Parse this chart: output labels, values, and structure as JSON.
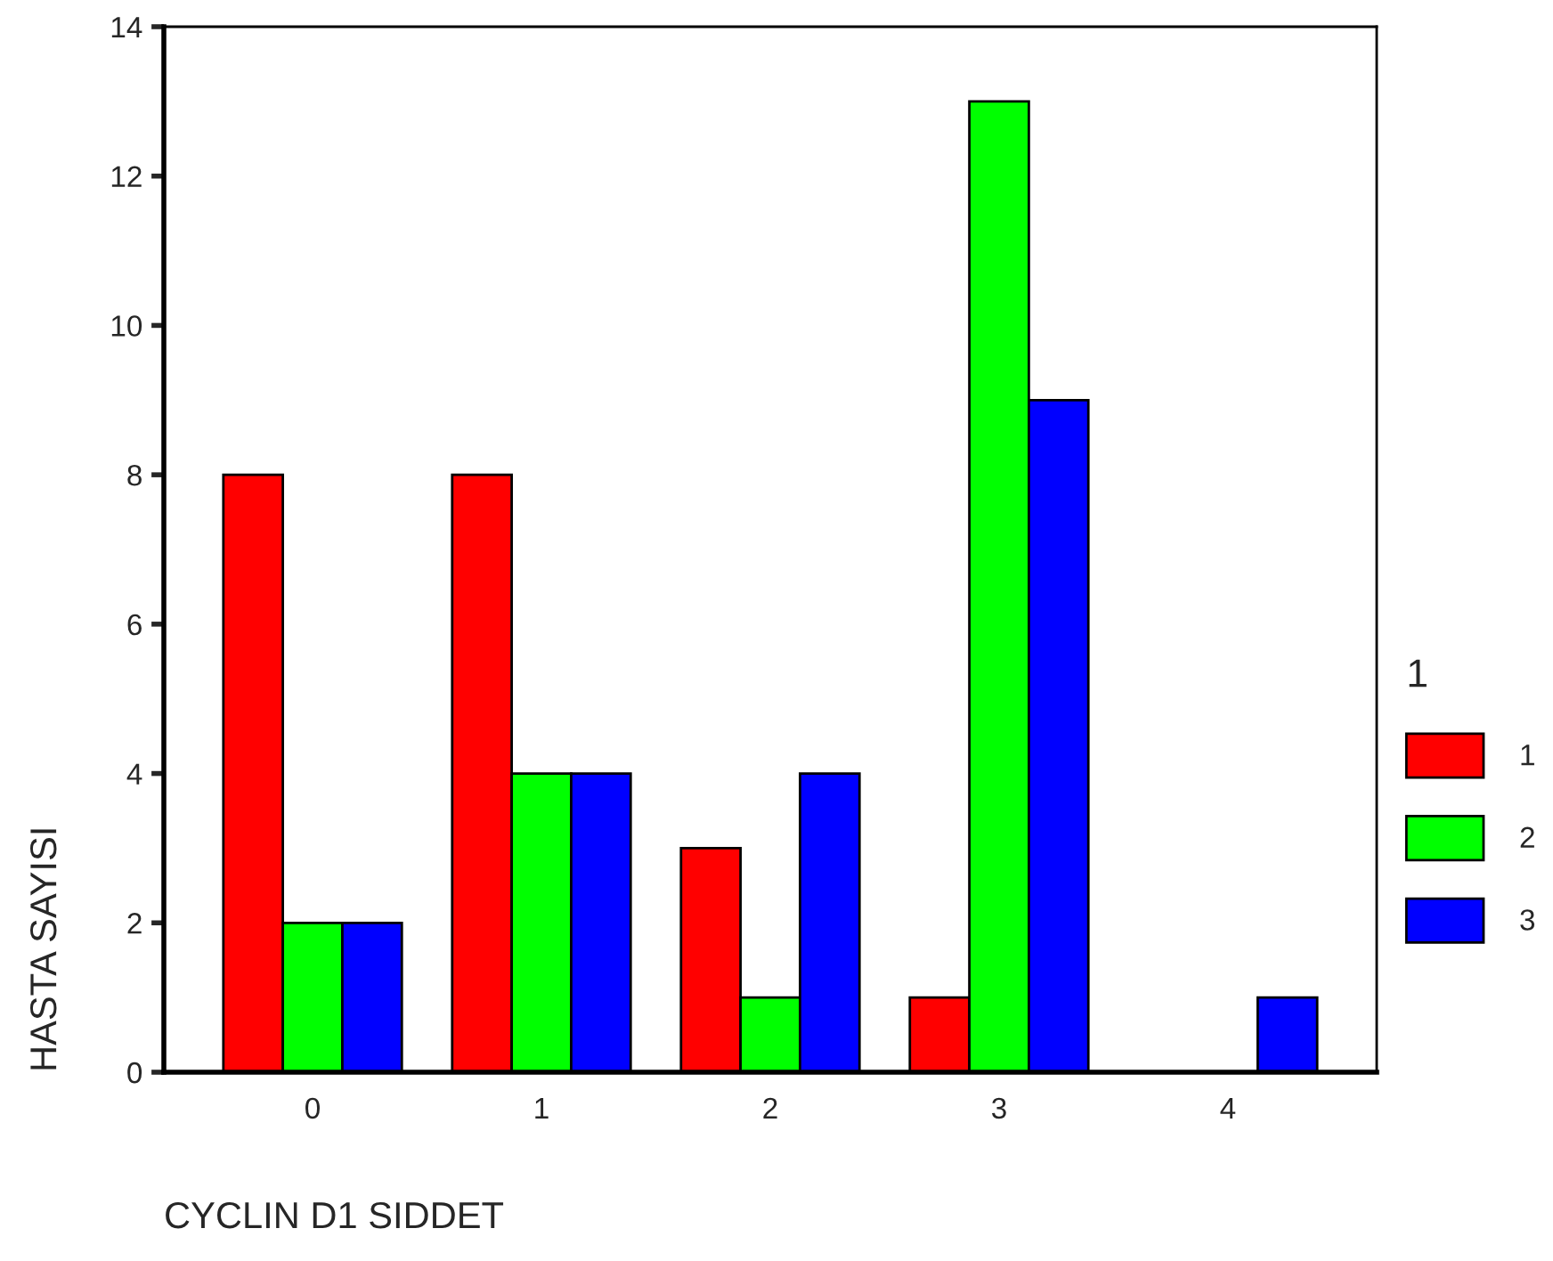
{
  "chart_data": {
    "type": "bar",
    "xlabel": "CYCLIN D1 SIDDET",
    "ylabel": "HASTA SAYISI",
    "legend_title": "1",
    "categories": [
      "0",
      "1",
      "2",
      "3",
      "4"
    ],
    "series": [
      {
        "name": "1",
        "color": "#ff0000",
        "values": [
          8,
          8,
          3,
          1,
          null
        ]
      },
      {
        "name": "2",
        "color": "#00ff00",
        "values": [
          2,
          4,
          1,
          13,
          null
        ]
      },
      {
        "name": "3",
        "color": "#0000ff",
        "values": [
          2,
          4,
          4,
          9,
          1
        ]
      }
    ],
    "ylim": [
      0,
      14
    ],
    "yticks": [
      0,
      2,
      4,
      6,
      8,
      10,
      12,
      14
    ],
    "grid": false,
    "legend": "right"
  }
}
